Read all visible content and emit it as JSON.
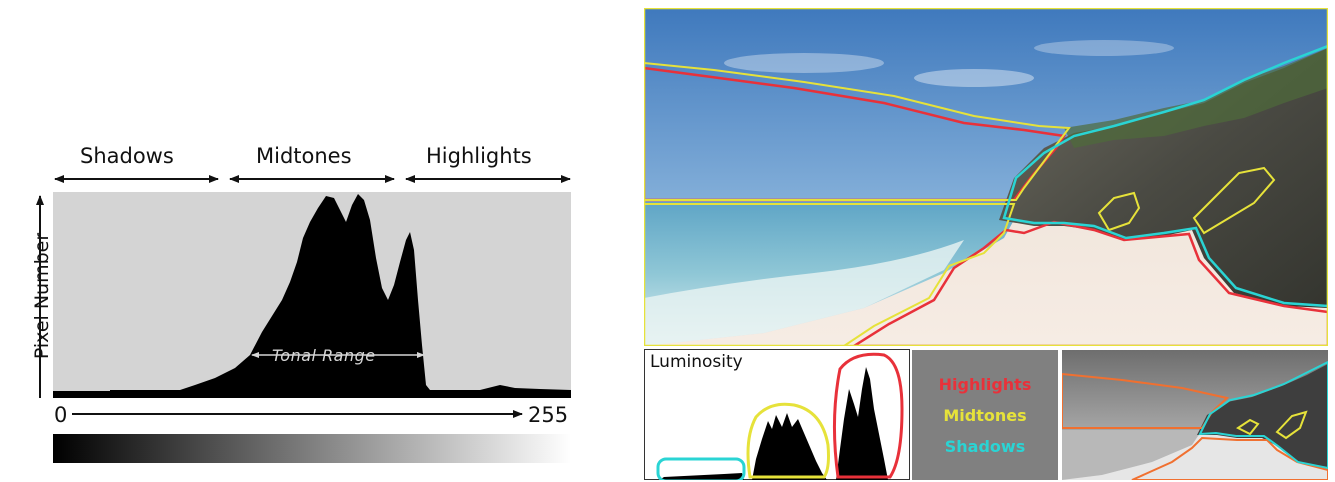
{
  "histogram_diagram": {
    "zones": {
      "shadows": "Shadows",
      "midtones": "Midtones",
      "highlights": "Highlights"
    },
    "y_axis_label": "Pixel Number",
    "x_axis_start": "0",
    "x_axis_end": "255",
    "tonal_range_label": "Tonal Range"
  },
  "photo_figure": {
    "luminosity_label": "Luminosity",
    "legend": [
      {
        "label": "Highlights",
        "color": "#e8313a"
      },
      {
        "label": "Midtones",
        "color": "#e6e23a"
      },
      {
        "label": "Shadows",
        "color": "#2ad4d4"
      }
    ]
  }
}
